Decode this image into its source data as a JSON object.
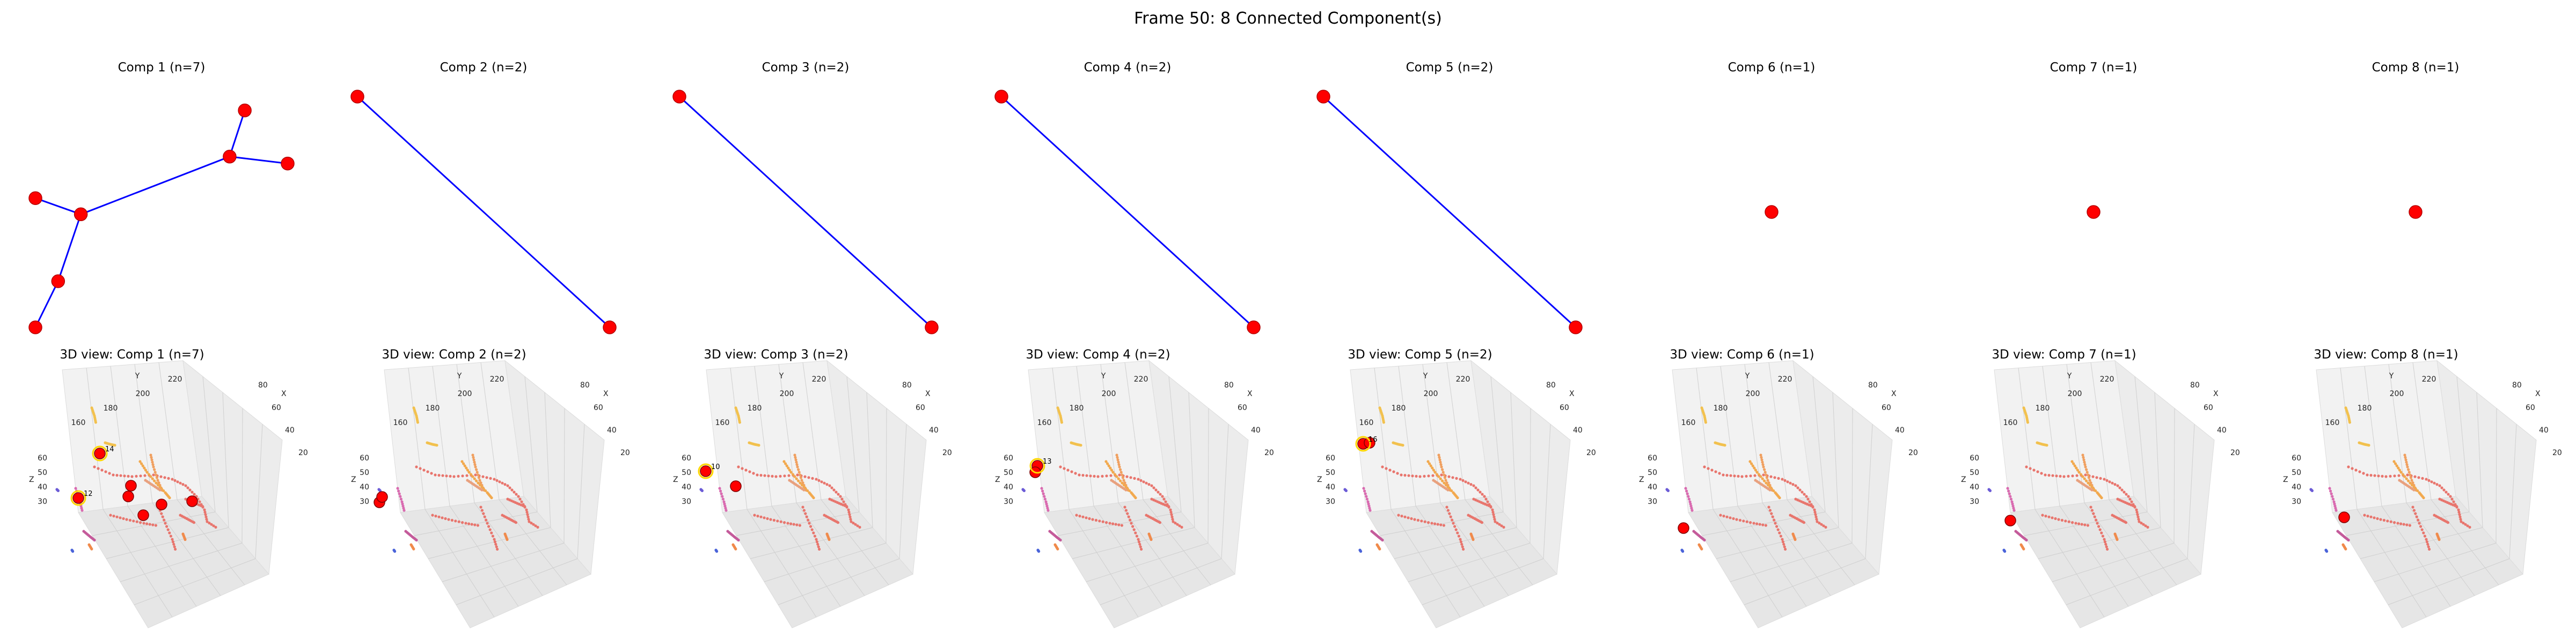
{
  "figure": {
    "title": "Frame 50: 8 Connected Component(s)"
  },
  "colors": {
    "node": "#ff0000",
    "node_edge": "#b40000",
    "edge": "#0000ff",
    "pane": "#f2f2f2",
    "grid": "#cfcfcf",
    "highlight": "#ff0000",
    "ring": "#ffd700"
  },
  "chart_data": [
    {
      "type": "graph",
      "title": "Comp 1 (n=7)",
      "nodes": [
        {
          "id": "n1a",
          "x": 0.83,
          "y": 0.94
        },
        {
          "id": "n1b",
          "x": 0.77,
          "y": 0.74
        },
        {
          "id": "n1c",
          "x": 1.0,
          "y": 0.71
        },
        {
          "id": "n1d",
          "x": 0.18,
          "y": 0.49
        },
        {
          "id": "n1e",
          "x": 0.0,
          "y": 0.56
        },
        {
          "id": "n1f",
          "x": 0.09,
          "y": 0.2
        },
        {
          "id": "n1g",
          "x": 0.0,
          "y": 0.0
        }
      ],
      "edges": [
        [
          0,
          1
        ],
        [
          1,
          2
        ],
        [
          1,
          3
        ],
        [
          3,
          4
        ],
        [
          3,
          5
        ],
        [
          5,
          6
        ]
      ]
    },
    {
      "type": "graph",
      "title": "Comp 2 (n=2)",
      "nodes": [
        {
          "id": "n2a",
          "x": 0.0,
          "y": 1.0
        },
        {
          "id": "n2b",
          "x": 1.0,
          "y": 0.0
        }
      ],
      "edges": [
        [
          0,
          1
        ]
      ]
    },
    {
      "type": "graph",
      "title": "Comp 3 (n=2)",
      "nodes": [
        {
          "id": "n3a",
          "x": 0.0,
          "y": 1.0
        },
        {
          "id": "n3b",
          "x": 1.0,
          "y": 0.0
        }
      ],
      "edges": [
        [
          0,
          1
        ]
      ]
    },
    {
      "type": "graph",
      "title": "Comp 4 (n=2)",
      "nodes": [
        {
          "id": "n4a",
          "x": 0.0,
          "y": 1.0
        },
        {
          "id": "n4b",
          "x": 1.0,
          "y": 0.0
        }
      ],
      "edges": [
        [
          0,
          1
        ]
      ]
    },
    {
      "type": "graph",
      "title": "Comp 5 (n=2)",
      "nodes": [
        {
          "id": "n5a",
          "x": 0.0,
          "y": 1.0
        },
        {
          "id": "n5b",
          "x": 1.0,
          "y": 0.0
        }
      ],
      "edges": [
        [
          0,
          1
        ]
      ]
    },
    {
      "type": "graph",
      "title": "Comp 6 (n=1)",
      "nodes": [
        {
          "id": "n6a",
          "x": 0.5,
          "y": 0.5
        }
      ],
      "edges": []
    },
    {
      "type": "graph",
      "title": "Comp 7 (n=1)",
      "nodes": [
        {
          "id": "n7a",
          "x": 0.5,
          "y": 0.5
        }
      ],
      "edges": []
    },
    {
      "type": "graph",
      "title": "Comp 8 (n=1)",
      "nodes": [
        {
          "id": "n8a",
          "x": 0.5,
          "y": 0.5
        }
      ],
      "edges": []
    },
    {
      "type": "scatter3d",
      "title": "3D view: Comp 1 (n=7)",
      "highlight_labels": [
        "14",
        "12"
      ]
    },
    {
      "type": "scatter3d",
      "title": "3D view: Comp 2 (n=2)",
      "highlight_labels": []
    },
    {
      "type": "scatter3d",
      "title": "3D view: Comp 3 (n=2)",
      "highlight_labels": [
        "10"
      ]
    },
    {
      "type": "scatter3d",
      "title": "3D view: Comp 4 (n=2)",
      "highlight_labels": [
        "13"
      ]
    },
    {
      "type": "scatter3d",
      "title": "3D view: Comp 5 (n=2)",
      "highlight_labels": [
        "16"
      ]
    },
    {
      "type": "scatter3d",
      "title": "3D view: Comp 6 (n=1)",
      "highlight_labels": []
    },
    {
      "type": "scatter3d",
      "title": "3D view: Comp 7 (n=1)",
      "highlight_labels": []
    },
    {
      "type": "scatter3d",
      "title": "3D view: Comp 8 (n=1)",
      "highlight_labels": []
    }
  ],
  "axes3d": {
    "y_label": "Y",
    "y_ticks": [
      "160",
      "180",
      "200",
      "220"
    ],
    "x_label": "X",
    "x_ticks": [
      "80",
      "60",
      "40",
      "20"
    ],
    "z_label": "Z",
    "z_ticks": [
      "60",
      "50",
      "40",
      "30"
    ]
  }
}
